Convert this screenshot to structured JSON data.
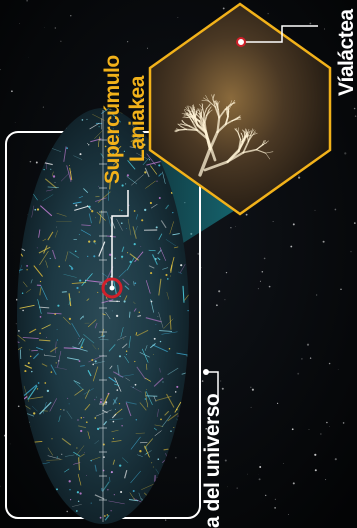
{
  "labels": {
    "laniakea_line1": "Supercúmulo",
    "laniakea_line2": "Laniakea",
    "milky_way": "Víaláctea",
    "universe_map": "a del universo"
  },
  "colors": {
    "background": "#050608",
    "accent_yellow": "#f2b21a",
    "hexagon_border": "#f2b21a",
    "projection_cone": "#1aa6b3",
    "marker_red": "#d0202a",
    "frame_white": "#ffffff"
  }
}
